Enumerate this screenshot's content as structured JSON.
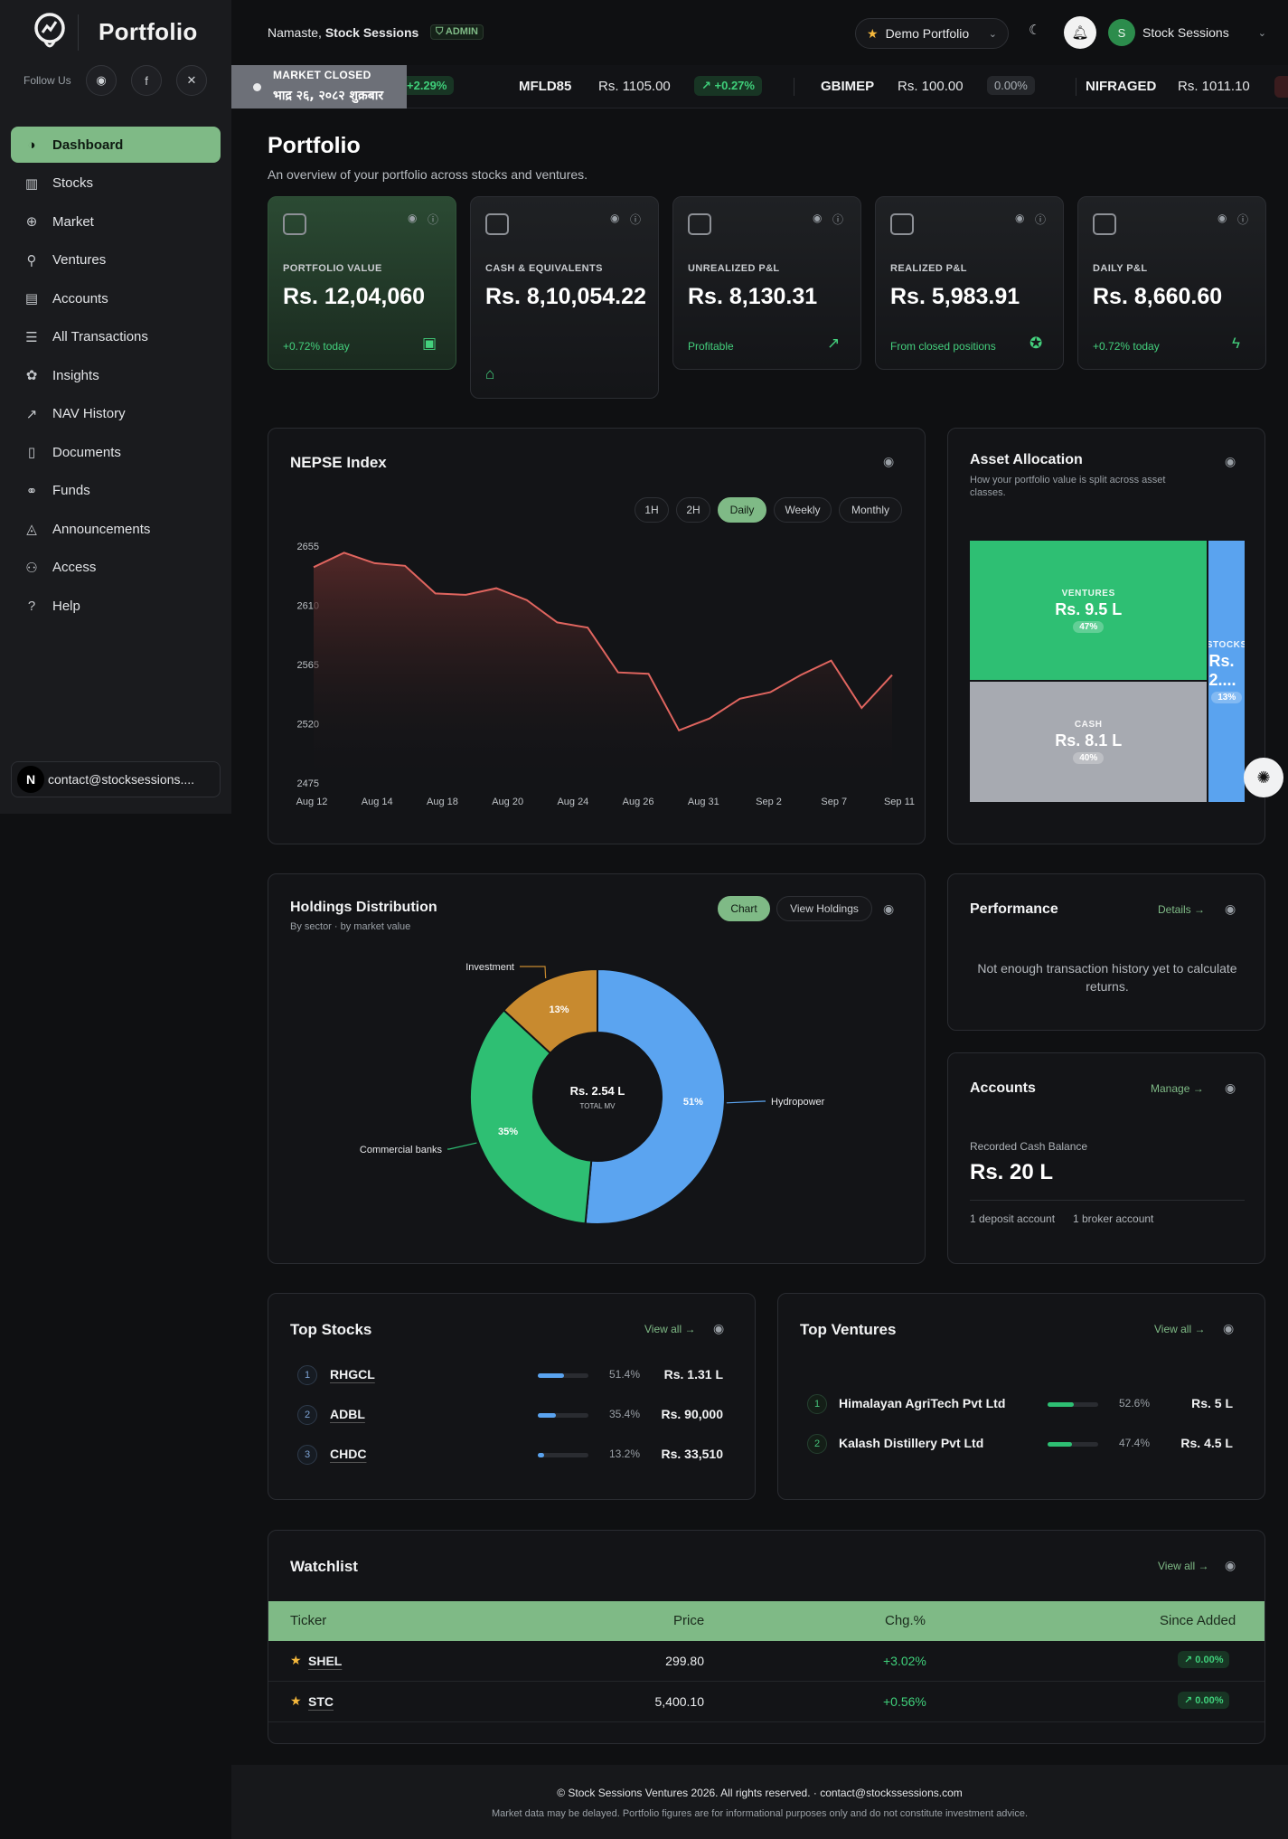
{
  "brand": {
    "name": "Portfolio"
  },
  "sidebar": {
    "follow_label": "Follow Us",
    "items": [
      {
        "label": "Dashboard",
        "icon": "dashboard-icon"
      },
      {
        "label": "Stocks",
        "icon": "bar-chart-icon"
      },
      {
        "label": "Market",
        "icon": "globe-icon"
      },
      {
        "label": "Ventures",
        "icon": "rocket-icon"
      },
      {
        "label": "Accounts",
        "icon": "briefcase-icon"
      },
      {
        "label": "All Transactions",
        "icon": "list-icon"
      },
      {
        "label": "Insights",
        "icon": "brain-icon"
      },
      {
        "label": "NAV History",
        "icon": "line-chart-icon"
      },
      {
        "label": "Documents",
        "icon": "document-icon"
      },
      {
        "label": "Funds",
        "icon": "handshake-icon"
      },
      {
        "label": "Announcements",
        "icon": "bell-icon"
      },
      {
        "label": "Access",
        "icon": "users-icon"
      },
      {
        "label": "Help",
        "icon": "help-icon"
      }
    ],
    "contact_email": "contact@stocksessions....",
    "contact_avatar": "N"
  },
  "header": {
    "greeting": "Namaste,",
    "user_name": "Stock Sessions",
    "admin_badge": "ADMIN",
    "portfolio_select": "Demo Portfolio",
    "account_name": "Stock Sessions",
    "account_initial": "S"
  },
  "ticker": {
    "status": "MARKET CLOSED",
    "date": "भाद्र २६, २०८२ शुक्रबार",
    "first_change": "+2.29%",
    "items": [
      {
        "symbol": "MFLD85",
        "price": "Rs. 1105.00",
        "change": "+0.27%",
        "type": "up"
      },
      {
        "symbol": "GBIMEP",
        "price": "Rs. 100.00",
        "change": "0.00%",
        "type": "flat"
      },
      {
        "symbol": "NIFRAGED",
        "price": "Rs. 1011.10",
        "change": "",
        "type": "down"
      }
    ]
  },
  "page": {
    "title": "Portfolio",
    "subtitle": "An overview of your portfolio across stocks and ventures."
  },
  "kpis": [
    {
      "label": "PORTFOLIO VALUE",
      "value": "Rs. 12,04,060",
      "sub": "+0.72% today",
      "icon": "wallet-icon"
    },
    {
      "label": "CASH & EQUIVALENTS",
      "value": "Rs. 8,10,054.22",
      "sub": "",
      "icon": "bank-icon"
    },
    {
      "label": "UNREALIZED P&L",
      "value": "Rs. 8,130.31",
      "sub": "Profitable",
      "icon": "trending-up-icon"
    },
    {
      "label": "REALIZED P&L",
      "value": "Rs. 5,983.91",
      "sub": "From closed positions",
      "icon": "piggy-bank-icon"
    },
    {
      "label": "DAILY P&L",
      "value": "Rs. 8,660.60",
      "sub": "+0.72% today",
      "icon": "lightning-icon"
    }
  ],
  "nepse": {
    "title": "NEPSE Index",
    "ranges": [
      "1H",
      "2H",
      "Daily",
      "Weekly",
      "Monthly"
    ],
    "active_range": "Daily"
  },
  "chart_data": [
    {
      "type": "area",
      "title": "NEPSE Index",
      "x_ticks": [
        "Aug 12",
        "Aug 14",
        "Aug 18",
        "Aug 20",
        "Aug 24",
        "Aug 26",
        "Aug 31",
        "Sep 2",
        "Sep 7",
        "Sep 11"
      ],
      "y_ticks": [
        2475,
        2520,
        2565,
        2610,
        2655
      ],
      "ylim": [
        2475,
        2655
      ],
      "values": [
        2639,
        2650,
        2642,
        2640,
        2619,
        2618,
        2623,
        2614,
        2597,
        2593,
        2559,
        2558,
        2515,
        2524,
        2539,
        2544,
        2557,
        2568,
        2532,
        2557
      ],
      "grid": false,
      "color": "#e0655f"
    },
    {
      "type": "treemap",
      "title": "Asset Allocation",
      "items": [
        {
          "label": "VENTURES",
          "value": "Rs. 9.5 L",
          "pct": 47,
          "color": "#2ebf73"
        },
        {
          "label": "CASH",
          "value": "Rs. 8.1 L",
          "pct": 40,
          "color": "#a7aab1"
        },
        {
          "label": "STOCKS",
          "value": "Rs. 2....",
          "pct": 13,
          "color": "#5aa3ef"
        }
      ]
    },
    {
      "type": "pie",
      "title": "Holdings Distribution",
      "center_value": "Rs. 2.54 L",
      "center_label": "TOTAL MV",
      "slices": [
        {
          "label": "Hydropower",
          "pct": 51,
          "color": "#5ba4f0"
        },
        {
          "label": "Commercial banks",
          "pct": 35,
          "color": "#2ebf73"
        },
        {
          "label": "Investment",
          "pct": 13,
          "color": "#c88a2f"
        }
      ]
    }
  ],
  "allocation": {
    "subtitle": "How your portfolio value is split across asset classes."
  },
  "holdings": {
    "subtitle": "By sector · by market value",
    "tab_chart": "Chart",
    "tab_view": "View Holdings"
  },
  "performance": {
    "title": "Performance",
    "link": "Details →",
    "message": "Not enough transaction history yet to calculate returns."
  },
  "accounts": {
    "title": "Accounts",
    "link": "Manage →",
    "label": "Recorded Cash Balance",
    "value": "Rs. 20 L",
    "deposit": "1 deposit account",
    "broker": "1 broker account"
  },
  "top_stocks": {
    "title": "Top Stocks",
    "link": "View all →",
    "rows": [
      {
        "rank": "1",
        "symbol": "RHGCL",
        "pct": "51.4%",
        "frac": 0.514,
        "value": "Rs. 1.31 L"
      },
      {
        "rank": "2",
        "symbol": "ADBL",
        "pct": "35.4%",
        "frac": 0.354,
        "value": "Rs. 90,000"
      },
      {
        "rank": "3",
        "symbol": "CHDC",
        "pct": "13.2%",
        "frac": 0.132,
        "value": "Rs. 33,510"
      }
    ]
  },
  "top_ventures": {
    "title": "Top Ventures",
    "link": "View all →",
    "rows": [
      {
        "rank": "1",
        "name": "Himalayan AgriTech Pvt Ltd",
        "pct": "52.6%",
        "frac": 0.526,
        "value": "Rs. 5 L"
      },
      {
        "rank": "2",
        "name": "Kalash Distillery Pvt Ltd",
        "pct": "47.4%",
        "frac": 0.474,
        "value": "Rs. 4.5 L"
      }
    ]
  },
  "watchlist": {
    "title": "Watchlist",
    "link": "View all →",
    "columns": [
      "Ticker",
      "Price",
      "Chg.%",
      "Since Added"
    ],
    "rows": [
      {
        "ticker": "SHEL",
        "price": "299.80",
        "chg": "+3.02%",
        "since": "0.00%"
      },
      {
        "ticker": "STC",
        "price": "5,400.10",
        "chg": "+0.56%",
        "since": "0.00%"
      }
    ]
  },
  "footer": {
    "line1": "© Stock Sessions Ventures 2026. All rights reserved. · contact@stockssessions.com",
    "line2": "Market data may be delayed. Portfolio figures are for informational purposes only and do not constitute investment advice."
  }
}
